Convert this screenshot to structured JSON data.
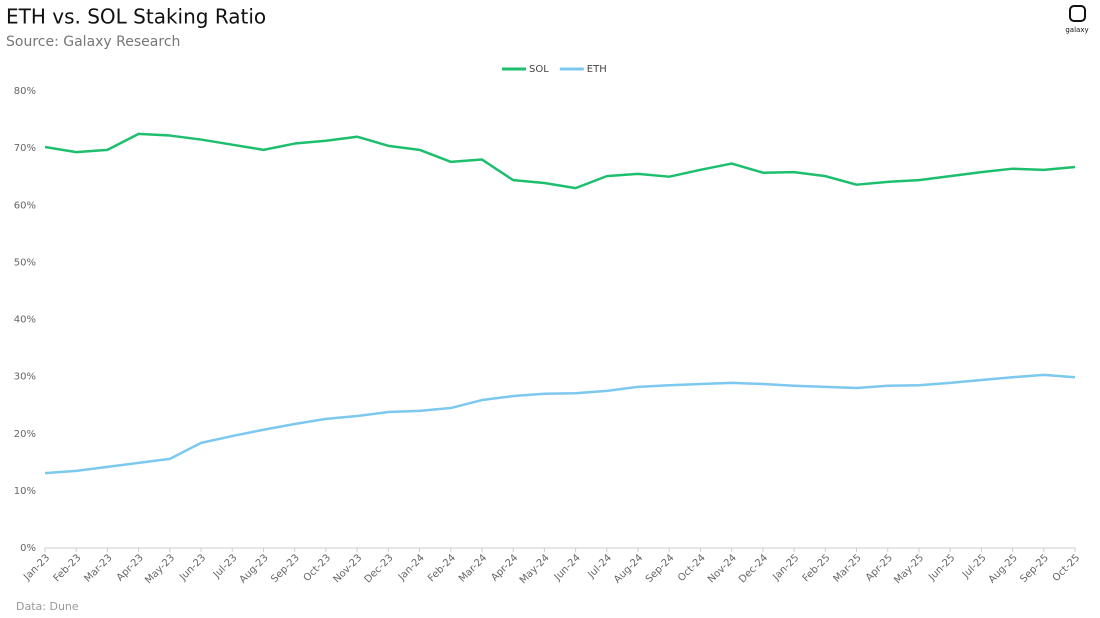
{
  "chart_data": {
    "type": "line",
    "title": "ETH vs. SOL Staking Ratio",
    "subtitle": "Source: Galaxy Research",
    "footnote": "Data: Dune",
    "brand": "galaxy",
    "categories": [
      "Jan-23",
      "Feb-23",
      "Mar-23",
      "Apr-23",
      "May-23",
      "Jun-23",
      "Jul-23",
      "Aug-23",
      "Sep-23",
      "Oct-23",
      "Nov-23",
      "Dec-23",
      "Jan-24",
      "Feb-24",
      "Mar-24",
      "Apr-24",
      "May-24",
      "Jun-24",
      "Jul-24",
      "Aug-24",
      "Sep-24",
      "Oct-24",
      "Nov-24",
      "Dec-24",
      "Jan-25",
      "Feb-25",
      "Mar-25",
      "Apr-25",
      "May-25",
      "Jun-25",
      "Jul-25",
      "Aug-25",
      "Sep-25",
      "Oct-25"
    ],
    "series": [
      {
        "name": "SOL",
        "color": "#1dbf6e",
        "values": [
          70.2,
          69.3,
          69.7,
          72.5,
          72.2,
          71.5,
          70.6,
          69.7,
          70.8,
          71.3,
          72.0,
          70.4,
          69.7,
          67.6,
          68.0,
          64.4,
          63.9,
          63.0,
          65.1,
          65.5,
          65.0,
          66.2,
          67.3,
          65.7,
          65.8,
          65.1,
          63.6,
          64.1,
          64.4,
          65.1,
          65.8,
          66.4,
          66.2,
          66.7
        ]
      },
      {
        "name": "ETH",
        "color": "#7cc8ef",
        "values": [
          13.1,
          13.5,
          14.2,
          14.9,
          15.6,
          18.4,
          19.6,
          20.7,
          21.7,
          22.6,
          23.1,
          23.8,
          24.0,
          24.5,
          25.9,
          26.6,
          27.0,
          27.1,
          27.5,
          28.2,
          28.5,
          28.7,
          28.9,
          28.7,
          28.4,
          28.2,
          28.0,
          28.4,
          28.5,
          28.9,
          29.4,
          29.9,
          30.3,
          29.9
        ]
      }
    ],
    "ylim": [
      0,
      80
    ],
    "yticks": [
      {
        "value": 0,
        "label": "0%"
      },
      {
        "value": 10,
        "label": "10%"
      },
      {
        "value": 20,
        "label": "20%"
      },
      {
        "value": 30,
        "label": "30%"
      },
      {
        "value": 40,
        "label": "40%"
      },
      {
        "value": 50,
        "label": "50%"
      },
      {
        "value": 60,
        "label": "60%"
      },
      {
        "value": 70,
        "label": "70%"
      },
      {
        "value": 80,
        "label": "80%"
      }
    ],
    "grid": false,
    "legend": "top"
  }
}
